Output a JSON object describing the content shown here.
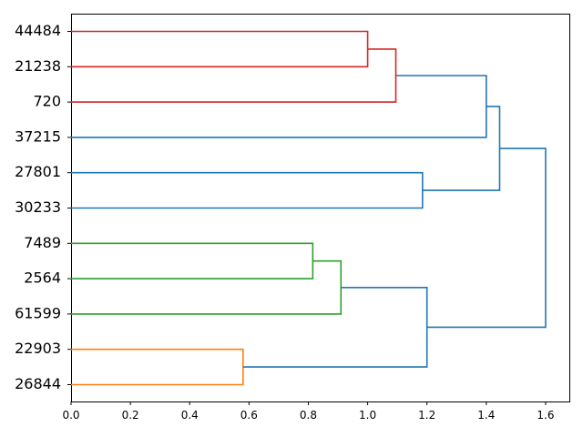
{
  "chart_data": {
    "type": "dendrogram",
    "orientation": "horizontal",
    "leaves": [
      "44484",
      "21238",
      "720",
      "37215",
      "27801",
      "30233",
      "7489",
      "2564",
      "61599",
      "22903",
      "26844"
    ],
    "xlim": [
      0,
      1.68
    ],
    "xticks": [
      0.0,
      0.2,
      0.4,
      0.6,
      0.8,
      1.0,
      1.2,
      1.4,
      1.6
    ],
    "xtick_labels": [
      "0.0",
      "0.2",
      "0.4",
      "0.6",
      "0.8",
      "1.0",
      "1.2",
      "1.4",
      "1.6"
    ],
    "merges": [
      {
        "a": "44484",
        "b": "21238",
        "height": 1.0,
        "color": "#d62728"
      },
      {
        "a": "m1",
        "b": "720",
        "height": 1.095,
        "color": "#d62728"
      },
      {
        "a": "m2",
        "b": "37215",
        "height": 1.4,
        "color": "#1f77b4"
      },
      {
        "a": "27801",
        "b": "30233",
        "height": 1.185,
        "color": "#1f77b4"
      },
      {
        "a": "m3",
        "b": "m4",
        "height": 1.445,
        "color": "#1f77b4"
      },
      {
        "a": "7489",
        "b": "2564",
        "height": 0.815,
        "color": "#2ca02c"
      },
      {
        "a": "m6",
        "b": "61599",
        "height": 0.91,
        "color": "#2ca02c"
      },
      {
        "a": "22903",
        "b": "26844",
        "height": 0.58,
        "color": "#ff7f0e"
      },
      {
        "a": "m7",
        "b": "m8",
        "height": 1.2,
        "color": "#1f77b4"
      },
      {
        "a": "m5",
        "b": "m9",
        "height": 1.6,
        "color": "#1f77b4"
      }
    ],
    "grid": false
  }
}
